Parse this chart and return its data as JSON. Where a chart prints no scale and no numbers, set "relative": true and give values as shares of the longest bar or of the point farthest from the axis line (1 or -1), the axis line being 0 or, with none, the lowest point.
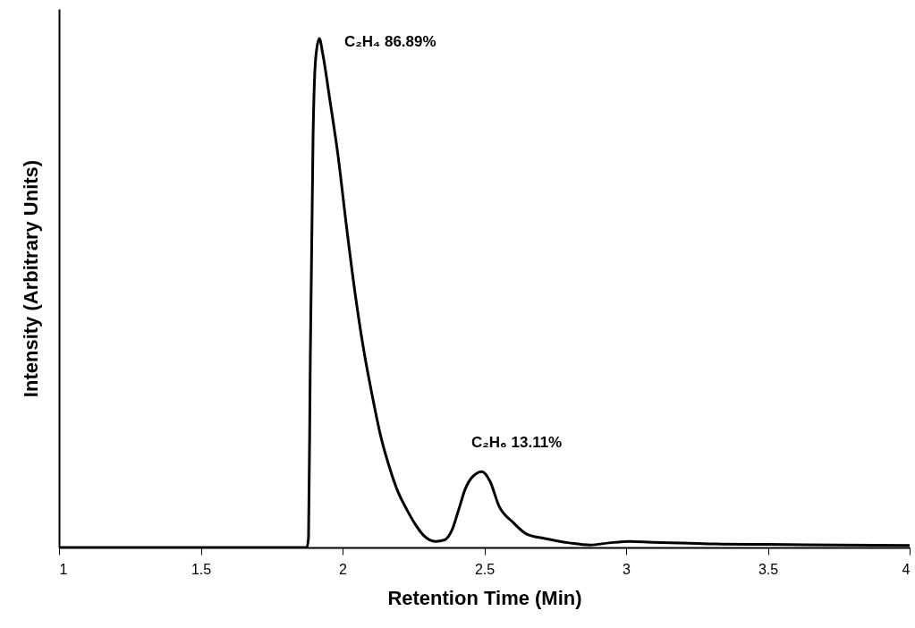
{
  "chart_data": {
    "type": "line",
    "relative": true,
    "xlabel": "Retention Time (Min)",
    "ylabel": "Intensity (Arbitrary Units)",
    "xlim": [
      1,
      4
    ],
    "xticks": [
      1,
      1.5,
      2,
      2.5,
      3,
      3.5,
      4
    ],
    "series": [
      {
        "color": "#000000",
        "x": [
          1,
          1.5,
          1.874,
          1.88,
          1.886,
          1.896,
          1.905,
          1.918,
          1.93,
          1.955,
          1.984,
          2.014,
          2.044,
          2.074,
          2.104,
          2.134,
          2.164,
          2.195,
          2.227,
          2.257,
          2.287,
          2.328,
          2.36,
          2.385,
          2.41,
          2.432,
          2.46,
          2.492,
          2.52,
          2.552,
          2.6,
          2.65,
          2.71,
          2.8,
          2.874,
          2.94,
          3.013,
          3.1,
          3.2,
          3.315,
          3.5,
          3.75,
          4
        ],
        "values": [
          0,
          0,
          0,
          0.02,
          0.36,
          0.81,
          0.96,
          1.0,
          0.97,
          0.88,
          0.77,
          0.63,
          0.5,
          0.39,
          0.3,
          0.22,
          0.16,
          0.11,
          0.074,
          0.045,
          0.023,
          0.012,
          0.015,
          0.033,
          0.075,
          0.114,
          0.14,
          0.149,
          0.13,
          0.081,
          0.05,
          0.026,
          0.018,
          0.009,
          0.005,
          0.009,
          0.012,
          0.01,
          0.009,
          0.007,
          0.006,
          0.005,
          0.004
        ]
      }
    ],
    "annotations": [
      {
        "text": "C₂H₄ 86.89%",
        "x": 1.918,
        "y": 1.0
      },
      {
        "text": "C₂H₆ 13.11%",
        "x": 2.492,
        "y": 0.149
      }
    ]
  }
}
